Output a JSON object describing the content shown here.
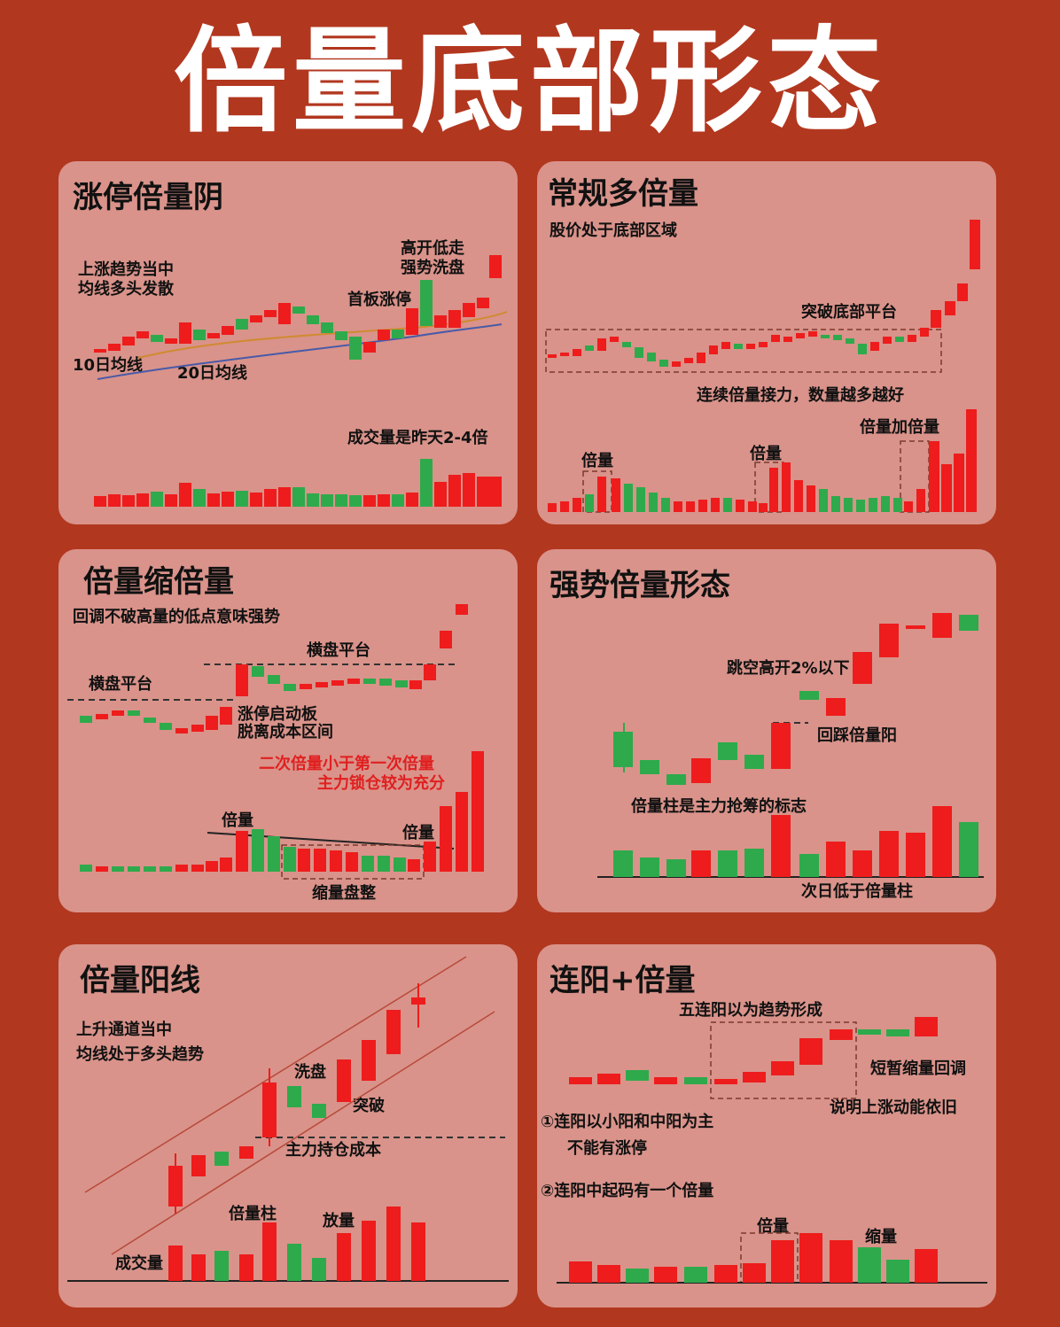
{
  "main_title": "倍量底部形态",
  "colors": {
    "red": "#ee1c1c",
    "green": "#2eaa4c",
    "panel": "#d9938a",
    "background": "#b2371f"
  },
  "panels": [
    {
      "title": "涨停倍量阴",
      "labels": [
        "上涨趋势当中",
        "均线多头发散",
        "10日均线",
        "20日均线",
        "首板涨停",
        "高开低走",
        "强势洗盘",
        "成交量是昨天2-4倍"
      ]
    },
    {
      "title": "常规多倍量",
      "labels": [
        "股价处于底部区域",
        "突破底部平台",
        "连续倍量接力，数量越多越好",
        "倍量加倍量",
        "倍量",
        "倍量"
      ]
    },
    {
      "title": "倍量缩倍量",
      "labels": [
        "回调不破高量的低点意味强势",
        "横盘平台",
        "横盘平台",
        "涨停启动板",
        "脱离成本区间",
        "二次倍量小于第一次倍量",
        "主力锁仓较为充分",
        "倍量",
        "倍量",
        "缩量盘整"
      ]
    },
    {
      "title": "强势倍量形态",
      "labels": [
        "跳空高开2%以下",
        "回踩倍量阳",
        "倍量柱是主力抢筹的标志",
        "次日低于倍量柱"
      ]
    },
    {
      "title": "倍量阳线",
      "labels": [
        "上升通道当中",
        "均线处于多头趋势",
        "洗盘",
        "突破",
        "主力持仓成本",
        "倍量柱",
        "放量",
        "成交量"
      ]
    },
    {
      "title": "连阳+倍量",
      "labels": [
        "五连阳以为趋势形成",
        "短暂缩量回调",
        "说明上涨动能依旧",
        "①连阳以小阳和中阳为主",
        "不能有涨停",
        "②连阳中起码有一个倍量",
        "倍量",
        "缩量"
      ]
    }
  ]
}
